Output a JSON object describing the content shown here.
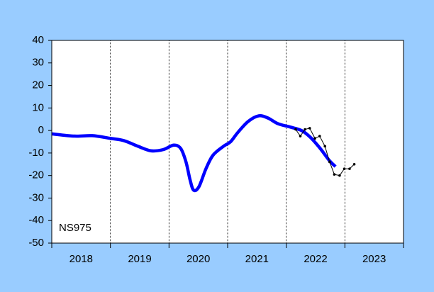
{
  "chart_data": {
    "type": "line",
    "annotation": "NS975",
    "categories": [
      "2018",
      "2019",
      "2020",
      "2021",
      "2022",
      "2023"
    ],
    "xlim": [
      2018,
      2024
    ],
    "xticks": [
      2018,
      2019,
      2020,
      2021,
      2022,
      2023,
      2024
    ],
    "ylim": [
      -50,
      40
    ],
    "yticks": [
      -50,
      -40,
      -30,
      -20,
      -10,
      0,
      10,
      20,
      30,
      40
    ],
    "grid": true,
    "series": [
      {
        "color": "#0000ff",
        "smooth": true,
        "x": [
          2018.0,
          2018.39,
          2018.69,
          2019.0,
          2019.23,
          2019.47,
          2019.69,
          2019.9,
          2020.08,
          2020.2,
          2020.29,
          2020.36,
          2020.42,
          2020.51,
          2020.63,
          2020.75,
          2020.93,
          2021.05,
          2021.17,
          2021.35,
          2021.53,
          2021.69,
          2021.86,
          2022.07,
          2022.26,
          2022.41,
          2022.58,
          2022.74,
          2022.84
        ],
        "values": [
          -1.5,
          -2.5,
          -2.3,
          -3.5,
          -4.5,
          -7,
          -9,
          -8.5,
          -6.5,
          -8,
          -14,
          -22,
          -26.5,
          -25,
          -17,
          -11,
          -7,
          -5,
          -1,
          4,
          6.5,
          5.5,
          3,
          1.5,
          0,
          -3,
          -8,
          -13.5,
          -16
        ]
      },
      {
        "color": "#000000",
        "smooth": false,
        "x": [
          2022.16,
          2022.24,
          2022.32,
          2022.4,
          2022.49,
          2022.57,
          2022.66,
          2022.74,
          2022.82,
          2022.91,
          2022.99,
          2023.08,
          2023.16
        ],
        "values": [
          0.5,
          -2.5,
          0.5,
          1,
          -3.5,
          -2.5,
          -7,
          -14,
          -19.5,
          -20,
          -17,
          -17,
          -15
        ]
      }
    ]
  }
}
